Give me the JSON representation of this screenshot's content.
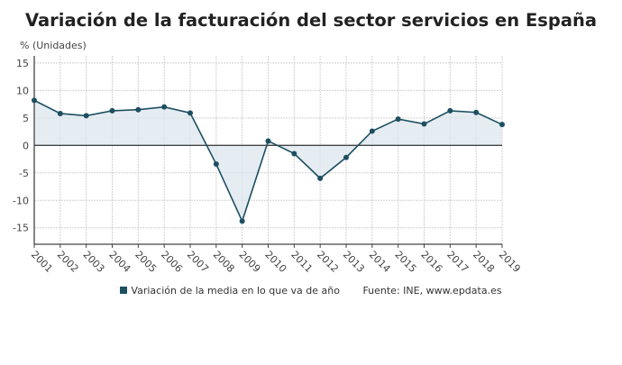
{
  "chart_data": {
    "type": "area",
    "title": "Variación de la facturación del sector servicios en España",
    "ylabel": "% (Unidades)",
    "xlabel": "",
    "categories": [
      "2001",
      "2002",
      "2003",
      "2004",
      "2005",
      "2006",
      "2007",
      "2008",
      "2009",
      "2010",
      "2011",
      "2012",
      "2013",
      "2014",
      "2015",
      "2016",
      "2017",
      "2018",
      "2019"
    ],
    "series": [
      {
        "name": "Variación de la media en lo que va de año",
        "values": [
          8.2,
          5.8,
          5.4,
          6.3,
          6.5,
          7.0,
          5.9,
          -3.4,
          -13.8,
          0.8,
          -1.5,
          -6.0,
          -2.2,
          2.6,
          4.8,
          3.9,
          6.3,
          6.0,
          3.8
        ]
      }
    ],
    "yticks": [
      15,
      10,
      5,
      0,
      -5,
      -10,
      -15
    ],
    "ylim": [
      -18,
      16.3
    ],
    "grid": true,
    "legend_position": "bottom",
    "source": "Fuente: INE, www.epdata.es",
    "colors": {
      "line": "#1d4f61",
      "fill": "#dce7ee",
      "grid": "#d0d0d0",
      "axis": "#444444"
    }
  }
}
